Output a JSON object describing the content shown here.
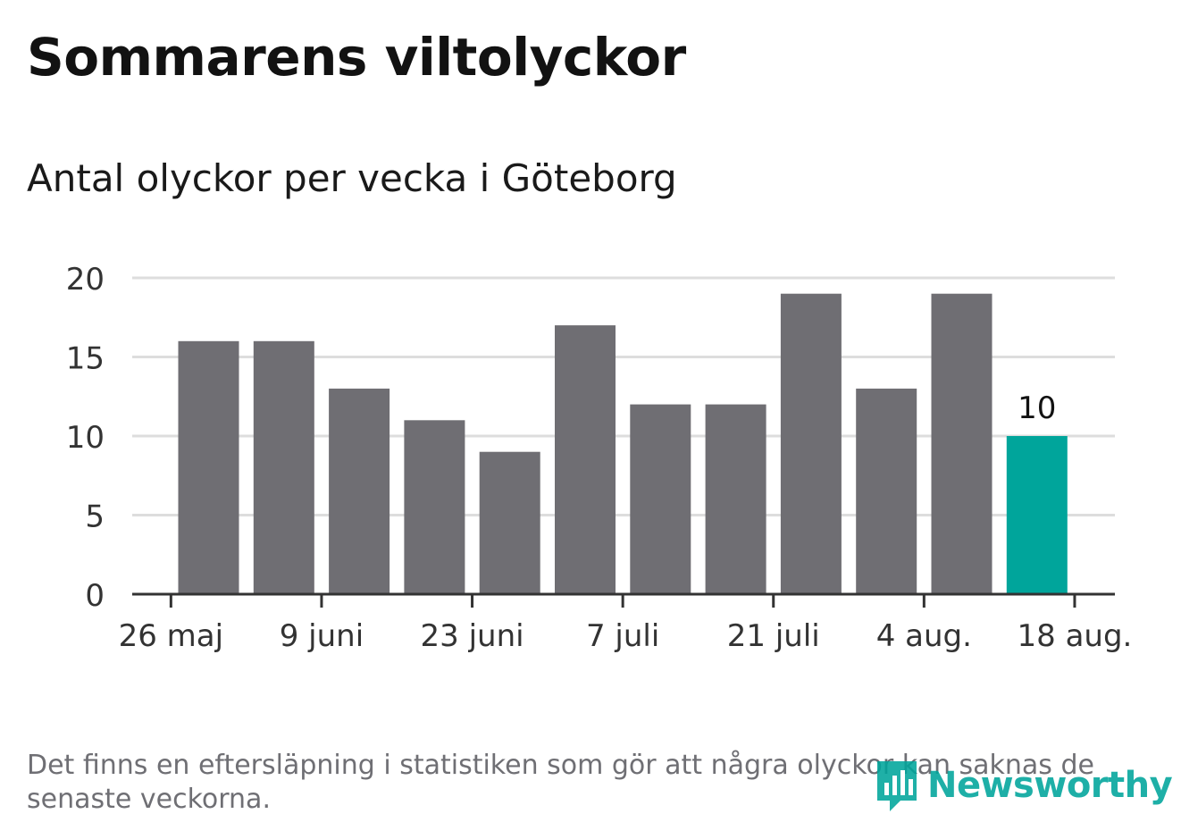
{
  "header": {
    "title": "Sommarens viltolyckor",
    "subtitle": "Antal olyckor per vecka i Göteborg"
  },
  "footer": {
    "note": "Det finns en eftersläpning i statistiken som gör att några olyckor kan saknas de senaste veckorna.",
    "logo_text": "Newsworthy"
  },
  "colors": {
    "bar": "#6f6e73",
    "highlight": "#00a59b",
    "grid": "#dddddd",
    "axis": "#333333",
    "text": "#121212"
  },
  "chart_data": {
    "type": "bar",
    "title": "Sommarens viltolyckor",
    "subtitle": "Antal olyckor per vecka i Göteborg",
    "x_tick_labels": [
      "26 maj",
      "9 juni",
      "23 juni",
      "7 juli",
      "21 juli",
      "4 aug.",
      "18 aug."
    ],
    "values": [
      16,
      16,
      13,
      11,
      9,
      17,
      12,
      12,
      19,
      13,
      19,
      10
    ],
    "highlight_index": 11,
    "highlight_label": "10",
    "y_ticks": [
      0,
      5,
      10,
      15,
      20
    ],
    "ylim": [
      0,
      20
    ],
    "grid": true
  }
}
